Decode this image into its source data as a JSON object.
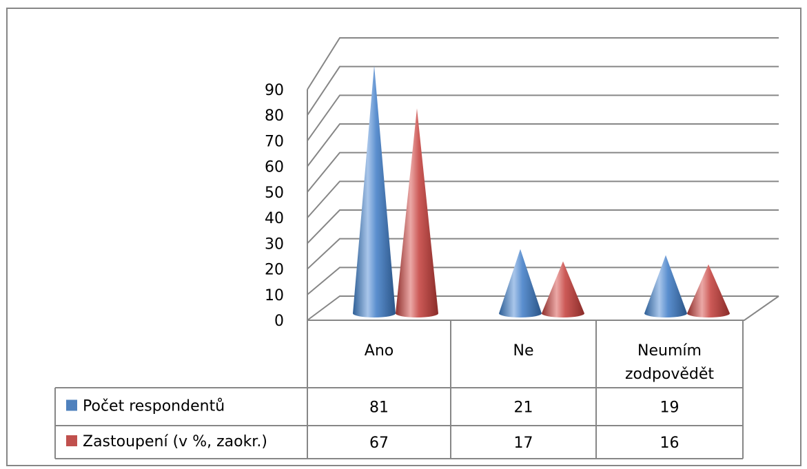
{
  "chart_data": {
    "type": "bar",
    "shape": "cone-3d",
    "categories": [
      "Ano",
      "Ne",
      "Neumím zodpovědět"
    ],
    "series": [
      {
        "name": "Počet respondentů",
        "values": [
          81,
          21,
          19
        ],
        "color": "#4f81bd"
      },
      {
        "name": "Zastoupení (v %, zaokr.)",
        "values": [
          67,
          17,
          16
        ],
        "color": "#c0504d"
      }
    ],
    "ylim": [
      0,
      90
    ],
    "yticks": [
      0,
      10,
      20,
      30,
      40,
      50,
      60,
      70,
      80,
      90
    ],
    "grid": true,
    "legend": "data-table"
  }
}
